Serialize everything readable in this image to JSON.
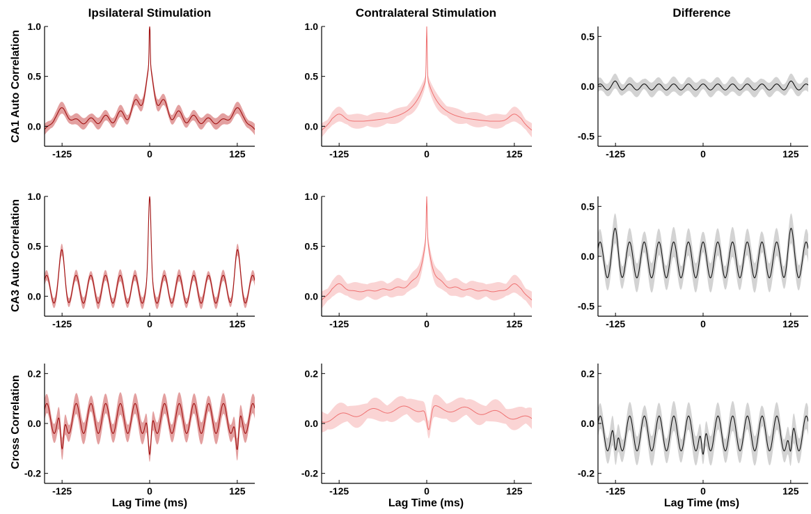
{
  "column_titles": [
    "Ipsilateral Stimulation",
    "Contralateral Stimulation",
    "Difference"
  ],
  "row_labels": [
    "CA1 Auto Correlation",
    "CA3 Auto Correlation",
    "Cross Correlation"
  ],
  "xlabel": "Lag Time (ms)",
  "colors": {
    "ipsilateral_line": "#a01010",
    "ipsilateral_band": "#d98080",
    "contralateral_line": "#ee7070",
    "contralateral_band": "#f9cccc",
    "difference_line": "#111111",
    "difference_band": "#c4c4c4"
  },
  "chart_data": [
    {
      "type": "line",
      "panel": "ipsilateral-ca1",
      "xlim": [
        -150,
        150
      ],
      "ylim": [
        -0.2,
        1.0
      ],
      "xticks": [
        -125,
        0,
        125
      ],
      "xtick_labels": [
        "-125",
        "0",
        "125"
      ],
      "yticks": [
        0,
        0.5,
        1.0
      ],
      "ytick_labels": [
        "0.0",
        "0.5",
        "1.0"
      ],
      "curve": {
        "kind": "auto",
        "peak": 1.0,
        "center": 0.55,
        "tau": 14,
        "base": 0.1,
        "osc": 0.1,
        "period": 21,
        "spikes": 0.06,
        "end_value": 0.02,
        "band": 0.04
      }
    },
    {
      "type": "line",
      "panel": "contralateral-ca1",
      "xlim": [
        -150,
        150
      ],
      "ylim": [
        -0.2,
        1.0
      ],
      "xticks": [
        -125,
        0,
        125
      ],
      "xtick_labels": [
        "-125",
        "0",
        "125"
      ],
      "yticks": [
        0,
        0.5,
        1.0
      ],
      "ytick_labels": [
        "0.0",
        "0.5",
        "1.0"
      ],
      "curve": {
        "kind": "auto",
        "peak": 1.0,
        "center": 0.5,
        "tau": 16,
        "base": 0.1,
        "osc": 0.0,
        "period": 21,
        "spikes": 0.05,
        "end_value": 0.04,
        "band": 0.05
      }
    },
    {
      "type": "line",
      "panel": "difference-ca1",
      "xlim": [
        -150,
        150
      ],
      "ylim": [
        -0.6,
        0.6
      ],
      "xticks": [
        -125,
        0,
        125
      ],
      "xtick_labels": [
        "-125",
        "0",
        "125"
      ],
      "yticks": [
        -0.5,
        0,
        0.5
      ],
      "ytick_labels": [
        "-0.5",
        "0.0",
        "0.5"
      ],
      "curve": {
        "kind": "diff",
        "amp": 0.03,
        "period": 21,
        "edge": 0.06,
        "band": 0.05
      }
    },
    {
      "type": "line",
      "panel": "ipsilateral-ca3",
      "xlim": [
        -150,
        150
      ],
      "ylim": [
        -0.2,
        1.0
      ],
      "xticks": [
        -125,
        0,
        125
      ],
      "xtick_labels": [
        "-125",
        "0",
        "125"
      ],
      "yticks": [
        0,
        0.5,
        1.0
      ],
      "ytick_labels": [
        "0.0",
        "0.5",
        "1.0"
      ],
      "curve": {
        "kind": "osc",
        "peak": 1.0,
        "mean": 0.07,
        "amp": 0.14,
        "period": 21,
        "edge": 0.5,
        "band": 0.04
      }
    },
    {
      "type": "line",
      "panel": "contralateral-ca3",
      "xlim": [
        -150,
        150
      ],
      "ylim": [
        -0.2,
        1.0
      ],
      "xticks": [
        -125,
        0,
        125
      ],
      "xtick_labels": [
        "-125",
        "0",
        "125"
      ],
      "yticks": [
        0,
        0.5,
        1.0
      ],
      "ytick_labels": [
        "0.0",
        "0.5",
        "1.0"
      ],
      "curve": {
        "kind": "auto",
        "peak": 1.0,
        "center": 0.62,
        "tau": 9,
        "base": 0.1,
        "osc": 0.02,
        "period": 21,
        "spikes": 0.05,
        "end_value": 0.06,
        "band": 0.06
      }
    },
    {
      "type": "line",
      "panel": "difference-ca3",
      "xlim": [
        -150,
        150
      ],
      "ylim": [
        -0.6,
        0.6
      ],
      "xticks": [
        -125,
        0,
        125
      ],
      "xtick_labels": [
        "-125",
        "0",
        "125"
      ],
      "yticks": [
        -0.5,
        0,
        0.5
      ],
      "ytick_labels": [
        "-0.5",
        "0.0",
        "0.5"
      ],
      "curve": {
        "kind": "diff",
        "amp": 0.18,
        "period": 21,
        "edge": 0.32,
        "band": 0.1
      }
    },
    {
      "type": "line",
      "panel": "ipsilateral-cross",
      "xlim": [
        -150,
        150
      ],
      "ylim": [
        -0.24,
        0.24
      ],
      "xticks": [
        -125,
        0,
        125
      ],
      "xtick_labels": [
        "-125",
        "0",
        "125"
      ],
      "yticks": [
        -0.2,
        0,
        0.2
      ],
      "ytick_labels": [
        "-0.2",
        "0.0",
        "0.2"
      ],
      "curve": {
        "kind": "cross",
        "mean": 0.02,
        "amp": 0.06,
        "period": 21,
        "dip": -0.22,
        "band": 0.03
      }
    },
    {
      "type": "line",
      "panel": "contralateral-cross",
      "xlim": [
        -150,
        150
      ],
      "ylim": [
        -0.24,
        0.24
      ],
      "xticks": [
        -125,
        0,
        125
      ],
      "xtick_labels": [
        "-125",
        "0",
        "125"
      ],
      "yticks": [
        -0.2,
        0,
        0.2
      ],
      "ytick_labels": [
        "-0.2",
        "0.0",
        "0.2"
      ],
      "curve": {
        "kind": "hump",
        "mean": 0.06,
        "dip": -0.03,
        "band": 0.03
      }
    },
    {
      "type": "line",
      "panel": "difference-cross",
      "xlim": [
        -150,
        150
      ],
      "ylim": [
        -0.24,
        0.24
      ],
      "xticks": [
        -125,
        0,
        125
      ],
      "xtick_labels": [
        "-125",
        "0",
        "125"
      ],
      "yticks": [
        -0.2,
        0,
        0.2
      ],
      "ytick_labels": [
        "-0.2",
        "0.0",
        "0.2"
      ],
      "curve": {
        "kind": "cross",
        "mean": -0.04,
        "amp": 0.07,
        "period": 21,
        "dip": -0.22,
        "band": 0.04
      }
    }
  ]
}
